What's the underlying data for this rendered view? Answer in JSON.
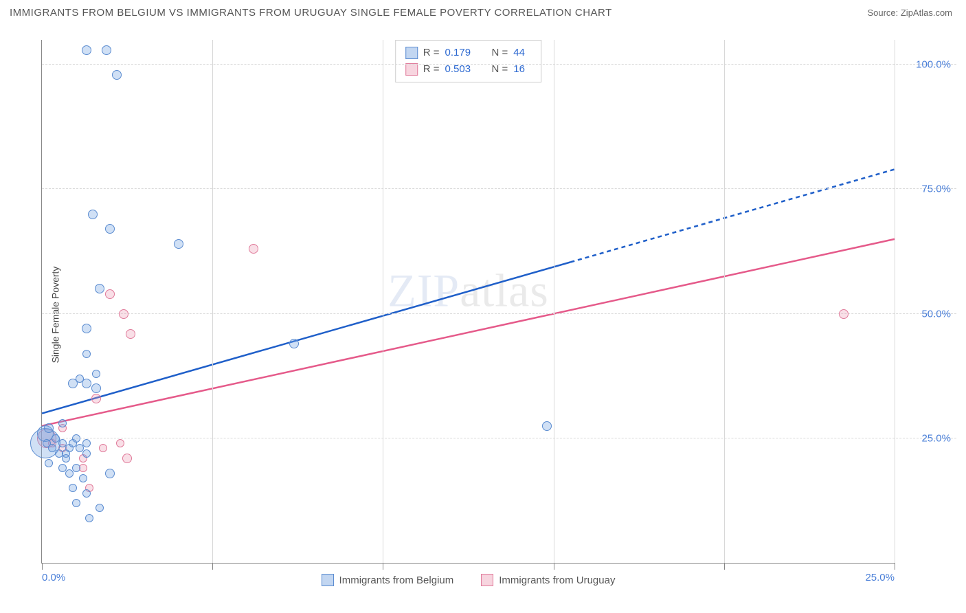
{
  "header": {
    "title": "IMMIGRANTS FROM BELGIUM VS IMMIGRANTS FROM URUGUAY SINGLE FEMALE POVERTY CORRELATION CHART",
    "source": "Source: ZipAtlas.com"
  },
  "watermark": {
    "brand": "ZIP",
    "suffix": "atlas"
  },
  "y_axis": {
    "label": "Single Female Poverty"
  },
  "chart": {
    "type": "scatter",
    "background_color": "#ffffff",
    "grid_color": "#d8d8d8",
    "axis_color": "#888888",
    "xlim": [
      0,
      25
    ],
    "ylim": [
      0,
      105
    ],
    "x_ticks": [
      0,
      5,
      10,
      15,
      20,
      25
    ],
    "x_tick_labels_shown": {
      "0": "0.0%",
      "25": "25.0%"
    },
    "y_ticks": [
      25,
      50,
      75,
      100
    ],
    "y_tick_labels": {
      "25": "25.0%",
      "50": "50.0%",
      "75": "75.0%",
      "100": "100.0%"
    },
    "series": {
      "belgium": {
        "label": "Immigrants from Belgium",
        "color_fill": "rgba(120,165,225,0.35)",
        "color_stroke": "#5a8bd0",
        "line_color": "#1f5fc9",
        "line_width": 2.5,
        "regression": {
          "y_at_x0": 30,
          "y_at_x25": 79,
          "solid_until_x": 15.5
        },
        "R": "0.179",
        "N": "44",
        "points": [
          {
            "x": 0.1,
            "y": 24,
            "r": 22
          },
          {
            "x": 0.1,
            "y": 26,
            "r": 12
          },
          {
            "x": 1.3,
            "y": 103,
            "r": 7
          },
          {
            "x": 1.9,
            "y": 103,
            "r": 7
          },
          {
            "x": 2.2,
            "y": 98,
            "r": 7
          },
          {
            "x": 1.5,
            "y": 70,
            "r": 7
          },
          {
            "x": 2.0,
            "y": 67,
            "r": 7
          },
          {
            "x": 4.0,
            "y": 64,
            "r": 7
          },
          {
            "x": 1.3,
            "y": 47,
            "r": 7
          },
          {
            "x": 0.15,
            "y": 24,
            "r": 6
          },
          {
            "x": 0.3,
            "y": 23,
            "r": 6
          },
          {
            "x": 0.4,
            "y": 25,
            "r": 6
          },
          {
            "x": 0.6,
            "y": 24,
            "r": 6
          },
          {
            "x": 0.8,
            "y": 23,
            "r": 6
          },
          {
            "x": 1.0,
            "y": 25,
            "r": 6
          },
          {
            "x": 0.5,
            "y": 22,
            "r": 6
          },
          {
            "x": 0.7,
            "y": 22,
            "r": 6
          },
          {
            "x": 0.9,
            "y": 24,
            "r": 6
          },
          {
            "x": 0.2,
            "y": 20,
            "r": 6
          },
          {
            "x": 0.7,
            "y": 21,
            "r": 6
          },
          {
            "x": 1.1,
            "y": 23,
            "r": 6
          },
          {
            "x": 1.3,
            "y": 22,
            "r": 6
          },
          {
            "x": 1.3,
            "y": 24,
            "r": 6
          },
          {
            "x": 0.6,
            "y": 19,
            "r": 6
          },
          {
            "x": 0.8,
            "y": 18,
            "r": 6
          },
          {
            "x": 1.0,
            "y": 19,
            "r": 6
          },
          {
            "x": 1.2,
            "y": 17,
            "r": 6
          },
          {
            "x": 2.0,
            "y": 18,
            "r": 7
          },
          {
            "x": 0.9,
            "y": 15,
            "r": 6
          },
          {
            "x": 1.3,
            "y": 14,
            "r": 6
          },
          {
            "x": 1.0,
            "y": 12,
            "r": 6
          },
          {
            "x": 1.7,
            "y": 11,
            "r": 6
          },
          {
            "x": 1.4,
            "y": 9,
            "r": 6
          },
          {
            "x": 0.6,
            "y": 28,
            "r": 6
          },
          {
            "x": 0.2,
            "y": 27,
            "r": 7
          },
          {
            "x": 0.9,
            "y": 36,
            "r": 7
          },
          {
            "x": 1.3,
            "y": 36,
            "r": 7
          },
          {
            "x": 1.6,
            "y": 35,
            "r": 7
          },
          {
            "x": 1.6,
            "y": 38,
            "r": 6
          },
          {
            "x": 1.1,
            "y": 37,
            "r": 6
          },
          {
            "x": 1.3,
            "y": 42,
            "r": 6
          },
          {
            "x": 7.4,
            "y": 44,
            "r": 7
          },
          {
            "x": 14.8,
            "y": 27.5,
            "r": 7
          },
          {
            "x": 1.7,
            "y": 55,
            "r": 7
          }
        ]
      },
      "uruguay": {
        "label": "Immigrants from Uruguay",
        "color_fill": "rgba(235,150,175,0.30)",
        "color_stroke": "#e07a9a",
        "line_color": "#e55a8a",
        "line_width": 2.5,
        "regression": {
          "y_at_x0": 27.5,
          "y_at_x25": 65,
          "solid_until_x": 25
        },
        "R": "0.503",
        "N": "16",
        "points": [
          {
            "x": 0.15,
            "y": 25,
            "r": 14
          },
          {
            "x": 6.2,
            "y": 63,
            "r": 7
          },
          {
            "x": 2.0,
            "y": 54,
            "r": 7
          },
          {
            "x": 2.4,
            "y": 50,
            "r": 7
          },
          {
            "x": 2.6,
            "y": 46,
            "r": 7
          },
          {
            "x": 23.5,
            "y": 50,
            "r": 7
          },
          {
            "x": 1.6,
            "y": 33,
            "r": 7
          },
          {
            "x": 0.6,
            "y": 27,
            "r": 6
          },
          {
            "x": 0.3,
            "y": 24,
            "r": 6
          },
          {
            "x": 0.6,
            "y": 23,
            "r": 6
          },
          {
            "x": 1.2,
            "y": 21,
            "r": 6
          },
          {
            "x": 1.8,
            "y": 23,
            "r": 6
          },
          {
            "x": 2.5,
            "y": 21,
            "r": 7
          },
          {
            "x": 1.2,
            "y": 19,
            "r": 6
          },
          {
            "x": 1.4,
            "y": 15,
            "r": 6
          },
          {
            "x": 2.3,
            "y": 24,
            "r": 6
          }
        ]
      }
    }
  },
  "legend_top": {
    "r_label": "R =",
    "n_label": "N ="
  }
}
